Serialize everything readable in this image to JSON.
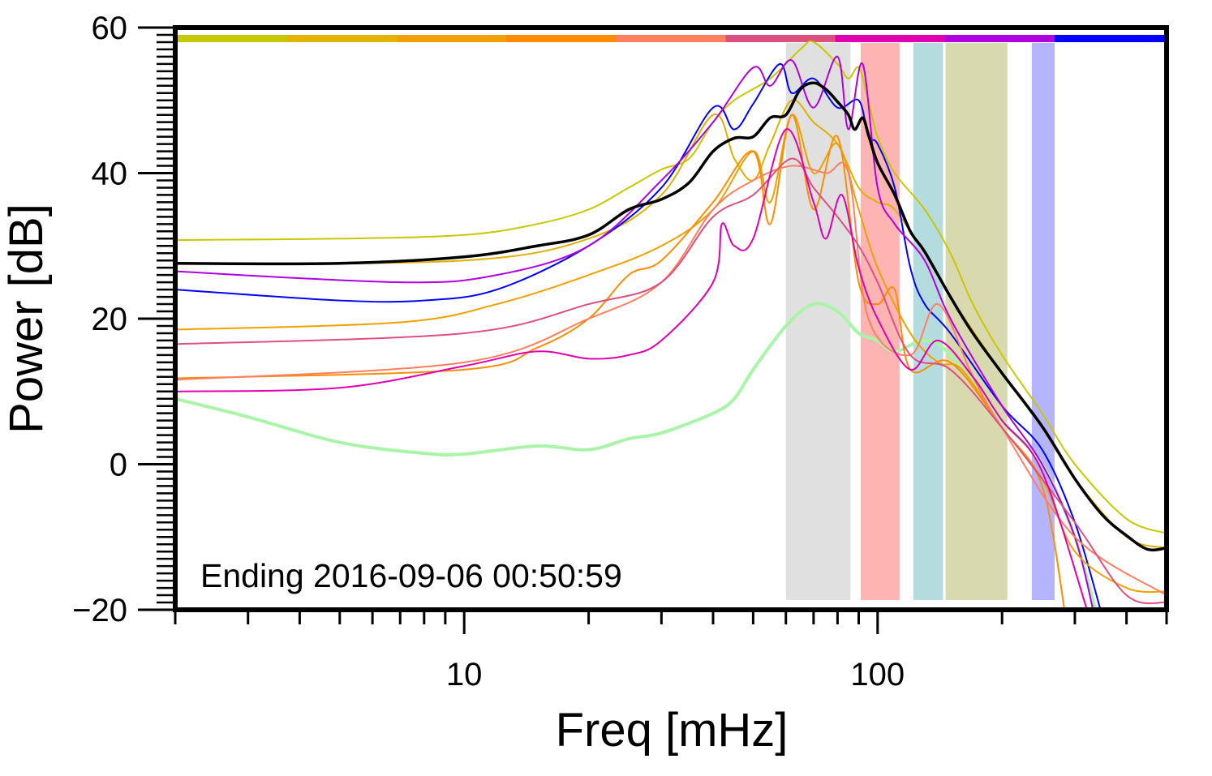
{
  "chart_data": {
    "type": "line",
    "title": "",
    "xlabel": "Freq [mHz]",
    "ylabel": "Power [dB]",
    "xscale": "log",
    "xlim": [
      2,
      500
    ],
    "ylim": [
      -20,
      60
    ],
    "xticks": [
      {
        "value": 10,
        "label": "10"
      },
      {
        "value": 100,
        "label": "100"
      }
    ],
    "yticks": [
      {
        "value": 60,
        "label": "60"
      },
      {
        "value": 40,
        "label": "40"
      },
      {
        "value": 20,
        "label": "20"
      },
      {
        "value": 0,
        "label": "0"
      },
      {
        "value": -20,
        "label": "−20"
      }
    ],
    "annotation": "Ending 2016-09-06 00:50:59",
    "top_color_bar": [
      "#c8c800",
      "#e0b400",
      "#f0a000",
      "#ff8c00",
      "#ff8060",
      "#dc5080",
      "#e000b0",
      "#b000e0",
      "#0000ff"
    ],
    "bands": [
      {
        "range": [
          60,
          86
        ],
        "color": "#e0e0e0"
      },
      {
        "range": [
          91,
          113
        ],
        "color": "#ffb4b4"
      },
      {
        "range": [
          122,
          144
        ],
        "color": "#b4dcdf"
      },
      {
        "range": [
          146,
          206
        ],
        "color": "#d9d9b0"
      },
      {
        "range": [
          236,
          268
        ],
        "color": "#b4b4ff"
      }
    ],
    "series": [
      {
        "name": "light-green",
        "color": "#a8f5a8",
        "width": 4,
        "points": [
          [
            2,
            9
          ],
          [
            3,
            6.5
          ],
          [
            5,
            3
          ],
          [
            8,
            1.5
          ],
          [
            10,
            1.4
          ],
          [
            15,
            2.5
          ],
          [
            20,
            2
          ],
          [
            25,
            3.5
          ],
          [
            30,
            4.3
          ],
          [
            40,
            7
          ],
          [
            45,
            9
          ],
          [
            50,
            13
          ],
          [
            60,
            19
          ],
          [
            70,
            22
          ],
          [
            80,
            21
          ],
          [
            90,
            18
          ],
          [
            100,
            17
          ],
          [
            110,
            15.5
          ],
          [
            130,
            17
          ],
          [
            150,
            15
          ],
          [
            200,
            6
          ],
          [
            250,
            0
          ],
          [
            300,
            -10
          ],
          [
            340,
            -21
          ]
        ]
      },
      {
        "name": "yellow-green",
        "color": "#c8c800",
        "width": 2,
        "points": [
          [
            2,
            30.8
          ],
          [
            5,
            31
          ],
          [
            10,
            31.5
          ],
          [
            15,
            33
          ],
          [
            20,
            35
          ],
          [
            25,
            38
          ],
          [
            30,
            40.5
          ],
          [
            35,
            42
          ],
          [
            40,
            47
          ],
          [
            45,
            50
          ],
          [
            55,
            53
          ],
          [
            65,
            57
          ],
          [
            70,
            58
          ],
          [
            80,
            55
          ],
          [
            85,
            53
          ],
          [
            90,
            54.5
          ],
          [
            95,
            50
          ],
          [
            100,
            45
          ],
          [
            110,
            40
          ],
          [
            130,
            35
          ],
          [
            150,
            29
          ],
          [
            170,
            22
          ],
          [
            200,
            15
          ],
          [
            250,
            7
          ],
          [
            300,
            0
          ],
          [
            400,
            -7.5
          ],
          [
            500,
            -9.5
          ]
        ]
      },
      {
        "name": "gold",
        "color": "#e0b000",
        "width": 2,
        "points": [
          [
            2,
            27.5
          ],
          [
            10,
            28
          ],
          [
            20,
            31
          ],
          [
            30,
            37
          ],
          [
            40,
            48
          ],
          [
            45,
            42
          ],
          [
            50,
            39
          ],
          [
            55,
            44
          ],
          [
            62,
            50
          ],
          [
            70,
            47
          ],
          [
            80,
            44
          ],
          [
            90,
            38
          ],
          [
            100,
            36
          ],
          [
            110,
            35
          ],
          [
            130,
            29
          ],
          [
            150,
            23
          ],
          [
            200,
            12.5
          ],
          [
            250,
            5
          ],
          [
            300,
            -2
          ],
          [
            400,
            -10
          ],
          [
            500,
            -11.5
          ]
        ]
      },
      {
        "name": "blue",
        "color": "#0000ff",
        "width": 2,
        "points": [
          [
            2,
            24
          ],
          [
            5,
            22.5
          ],
          [
            8,
            22.5
          ],
          [
            12,
            24
          ],
          [
            20,
            30
          ],
          [
            30,
            38
          ],
          [
            40,
            49
          ],
          [
            45,
            46
          ],
          [
            50,
            49.5
          ],
          [
            58,
            55
          ],
          [
            62,
            51
          ],
          [
            70,
            53
          ],
          [
            80,
            49
          ],
          [
            90,
            50
          ],
          [
            95,
            45
          ],
          [
            100,
            44
          ],
          [
            110,
            38
          ],
          [
            120,
            27
          ],
          [
            130,
            22
          ],
          [
            150,
            18
          ],
          [
            200,
            8
          ],
          [
            250,
            2
          ],
          [
            300,
            -8
          ],
          [
            350,
            -21
          ]
        ]
      },
      {
        "name": "purple",
        "color": "#b000e0",
        "width": 2,
        "points": [
          [
            2,
            26.5
          ],
          [
            7,
            25
          ],
          [
            12,
            26
          ],
          [
            20,
            30
          ],
          [
            30,
            39
          ],
          [
            40,
            47
          ],
          [
            50,
            54.5
          ],
          [
            55,
            52
          ],
          [
            62,
            55.5
          ],
          [
            70,
            49
          ],
          [
            80,
            56
          ],
          [
            85,
            46
          ],
          [
            92,
            55
          ],
          [
            100,
            38
          ],
          [
            110,
            33
          ],
          [
            130,
            28
          ],
          [
            150,
            20
          ],
          [
            200,
            8
          ],
          [
            250,
            0
          ],
          [
            300,
            -10
          ],
          [
            335,
            -21
          ]
        ]
      },
      {
        "name": "orange",
        "color": "#f0a000",
        "width": 2,
        "points": [
          [
            2,
            18.5
          ],
          [
            7,
            19.5
          ],
          [
            12,
            22
          ],
          [
            20,
            26
          ],
          [
            30,
            30
          ],
          [
            40,
            35
          ],
          [
            50,
            43
          ],
          [
            55,
            36
          ],
          [
            62,
            48
          ],
          [
            70,
            40
          ],
          [
            80,
            44
          ],
          [
            90,
            35
          ],
          [
            100,
            27
          ],
          [
            120,
            18
          ],
          [
            140,
            14
          ],
          [
            160,
            13
          ],
          [
            200,
            5
          ],
          [
            250,
            -2
          ],
          [
            300,
            -12
          ],
          [
            400,
            -17
          ],
          [
            500,
            -17.5
          ]
        ]
      },
      {
        "name": "dark-orange",
        "color": "#ff8c00",
        "width": 2,
        "points": [
          [
            2,
            11.8
          ],
          [
            10,
            13
          ],
          [
            15,
            16
          ],
          [
            20,
            20
          ],
          [
            25,
            26
          ],
          [
            30,
            28
          ],
          [
            40,
            36
          ],
          [
            50,
            43
          ],
          [
            55,
            33
          ],
          [
            62,
            48
          ],
          [
            70,
            35
          ],
          [
            80,
            45
          ],
          [
            90,
            25
          ],
          [
            100,
            22
          ],
          [
            110,
            24
          ],
          [
            120,
            13
          ],
          [
            150,
            14
          ],
          [
            200,
            5
          ],
          [
            250,
            -3
          ],
          [
            285,
            -21
          ]
        ]
      },
      {
        "name": "salmon",
        "color": "#ff7f60",
        "width": 2,
        "points": [
          [
            2,
            11.6
          ],
          [
            10,
            14
          ],
          [
            20,
            20
          ],
          [
            30,
            25
          ],
          [
            40,
            35
          ],
          [
            50,
            39
          ],
          [
            62,
            41
          ],
          [
            75,
            40
          ],
          [
            85,
            40
          ],
          [
            95,
            20
          ],
          [
            120,
            15
          ],
          [
            140,
            22
          ],
          [
            170,
            12
          ],
          [
            200,
            5
          ],
          [
            300,
            -10
          ],
          [
            500,
            -18
          ]
        ]
      },
      {
        "name": "pink",
        "color": "#dd5080",
        "width": 2,
        "points": [
          [
            2,
            16.5
          ],
          [
            10,
            18
          ],
          [
            20,
            22
          ],
          [
            30,
            25
          ],
          [
            40,
            34
          ],
          [
            50,
            37
          ],
          [
            62,
            42
          ],
          [
            70,
            38
          ],
          [
            80,
            34
          ],
          [
            90,
            30
          ],
          [
            100,
            25
          ],
          [
            120,
            15
          ],
          [
            150,
            13
          ],
          [
            200,
            5
          ],
          [
            300,
            -8
          ],
          [
            400,
            -18
          ],
          [
            500,
            -19
          ]
        ]
      },
      {
        "name": "magenta",
        "color": "#e000b0",
        "width": 2,
        "points": [
          [
            2,
            10
          ],
          [
            5,
            10.5
          ],
          [
            10,
            13.5
          ],
          [
            15,
            15.5
          ],
          [
            20,
            14.5
          ],
          [
            25,
            15
          ],
          [
            30,
            17
          ],
          [
            40,
            25
          ],
          [
            42,
            33
          ],
          [
            45,
            30
          ],
          [
            50,
            31
          ],
          [
            60,
            46
          ],
          [
            70,
            36
          ],
          [
            75,
            31
          ],
          [
            82,
            37
          ],
          [
            90,
            27
          ],
          [
            100,
            20
          ],
          [
            120,
            13
          ],
          [
            140,
            17
          ],
          [
            170,
            12
          ],
          [
            200,
            6
          ],
          [
            250,
            -1
          ],
          [
            325,
            -21
          ]
        ]
      },
      {
        "name": "mean",
        "color": "#000000",
        "width": 3.5,
        "points": [
          [
            2,
            27.6
          ],
          [
            5,
            27.6
          ],
          [
            10,
            28.5
          ],
          [
            15,
            30
          ],
          [
            20,
            31.5
          ],
          [
            25,
            35
          ],
          [
            30,
            36.4
          ],
          [
            35,
            38.7
          ],
          [
            40,
            43
          ],
          [
            45,
            44.8
          ],
          [
            50,
            45
          ],
          [
            55,
            47.6
          ],
          [
            60,
            48
          ],
          [
            65,
            51.5
          ],
          [
            70,
            52.4
          ],
          [
            75,
            51.5
          ],
          [
            80,
            49.8
          ],
          [
            85,
            48
          ],
          [
            88,
            46
          ],
          [
            92,
            47.6
          ],
          [
            95,
            45.3
          ],
          [
            100,
            41.4
          ],
          [
            110,
            37
          ],
          [
            120,
            32
          ],
          [
            130,
            29.2
          ],
          [
            150,
            23
          ],
          [
            170,
            18
          ],
          [
            200,
            12.5
          ],
          [
            250,
            5.2
          ],
          [
            300,
            -2
          ],
          [
            350,
            -7
          ],
          [
            400,
            -9.8
          ],
          [
            450,
            -11.7
          ],
          [
            500,
            -11.5
          ]
        ]
      }
    ]
  }
}
